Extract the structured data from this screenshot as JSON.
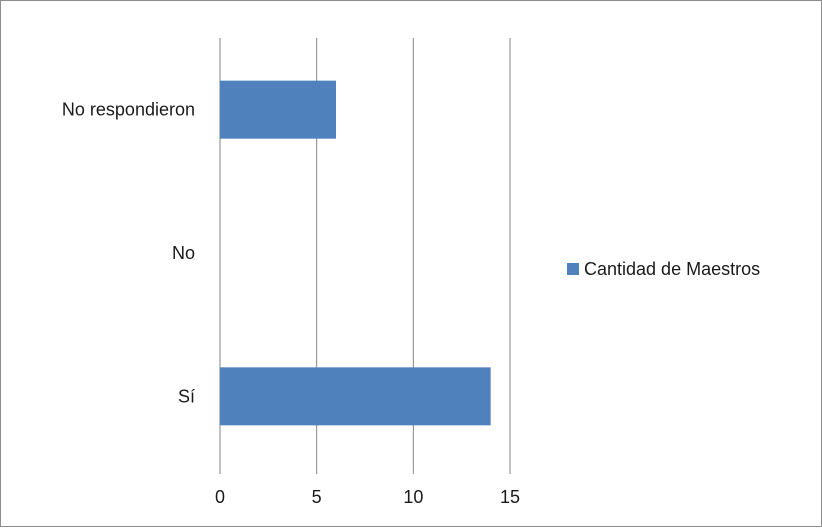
{
  "chart_data": {
    "type": "bar",
    "orientation": "horizontal",
    "categories": [
      "Sí",
      "No",
      "No respondieron"
    ],
    "series": [
      {
        "name": "Cantidad de Maestros",
        "values": [
          14,
          0,
          6
        ],
        "color": "#4F81BD"
      }
    ],
    "xlim": [
      0,
      15
    ],
    "xticks": [
      0,
      5,
      10,
      15
    ],
    "grid": "vertical",
    "legend_position": "right",
    "title": "",
    "xlabel": "",
    "ylabel": ""
  }
}
